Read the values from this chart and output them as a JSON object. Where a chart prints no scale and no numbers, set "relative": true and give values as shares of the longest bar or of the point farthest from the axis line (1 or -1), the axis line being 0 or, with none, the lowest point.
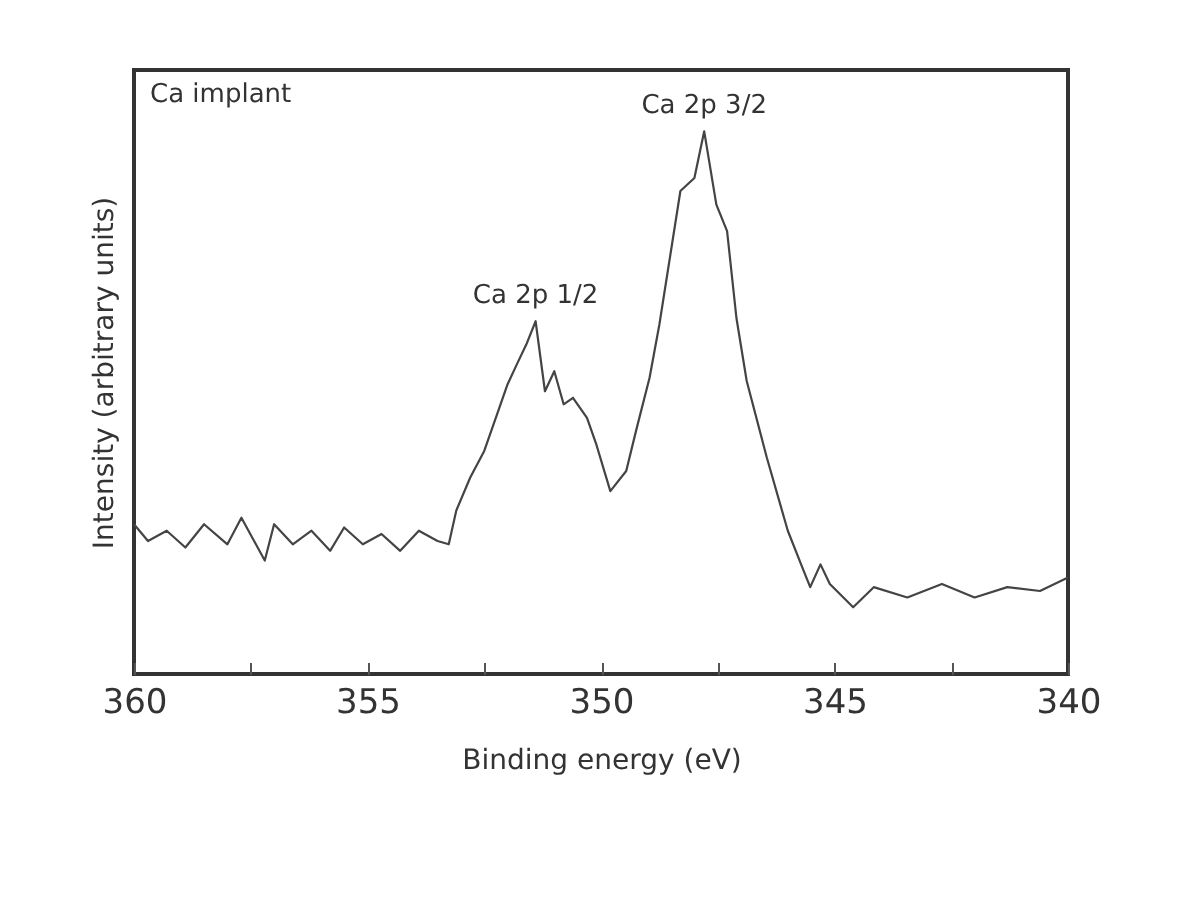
{
  "chart_data": {
    "type": "line",
    "relative": true,
    "xlabel": "Binding energy (eV)",
    "ylabel": "Intensity (arbitrary units)",
    "xlim": [
      360,
      340
    ],
    "xticks": [
      360,
      {
        "value": 357.5,
        "label": null
      },
      355,
      {
        "value": 352.5,
        "label": null
      },
      350,
      {
        "value": 347.5,
        "label": null
      },
      345,
      {
        "value": 342.5,
        "label": null
      },
      340
    ],
    "grid": false,
    "marker": "none",
    "line_style": "solid",
    "annotations": [
      "Ca implant",
      {
        "text": "Ca 2p 1/2",
        "x": 351.4,
        "y": 0.65
      },
      {
        "text": "Ca 2p 3/2",
        "x": 347.79,
        "y": 1
      }
    ],
    "series": [
      {
        "color": "#444444",
        "x": [
          360,
          359.7,
          359.3,
          358.9,
          358.5,
          358.0,
          357.7,
          357.2,
          357.0,
          356.6,
          356.2,
          355.8,
          355.5,
          355.1,
          354.7,
          354.3,
          353.9,
          353.5,
          353.26,
          353.1,
          352.8,
          352.5,
          352.2,
          352.0,
          351.8,
          351.6,
          351.4,
          351.2,
          351.0,
          350.8,
          350.6,
          350.3,
          350.1,
          349.8,
          349.46,
          349.25,
          348.96,
          348.75,
          348.3,
          348.0,
          347.79,
          347.53,
          347.3,
          347.1,
          346.88,
          346.45,
          346.0,
          345.66,
          345.52,
          345.3,
          345.1,
          344.6,
          344.16,
          343.44,
          342.7,
          342.0,
          341.3,
          340.6,
          340
        ],
        "values": [
          0.276,
          0.245,
          0.264,
          0.233,
          0.276,
          0.239,
          0.288,
          0.209,
          0.276,
          0.239,
          0.264,
          0.227,
          0.27,
          0.239,
          0.258,
          0.227,
          0.264,
          0.245,
          0.239,
          0.301,
          0.362,
          0.411,
          0.485,
          0.534,
          0.571,
          0.607,
          0.65,
          0.521,
          0.558,
          0.497,
          0.509,
          0.472,
          0.423,
          0.337,
          0.374,
          0.448,
          0.546,
          0.644,
          0.89,
          0.914,
          1,
          0.865,
          0.816,
          0.656,
          0.54,
          0.399,
          0.264,
          0.19,
          0.16,
          0.202,
          0.166,
          0.123,
          0.16,
          0.141,
          0.166,
          0.141,
          0.16,
          0.153,
          0.178
        ]
      }
    ]
  }
}
